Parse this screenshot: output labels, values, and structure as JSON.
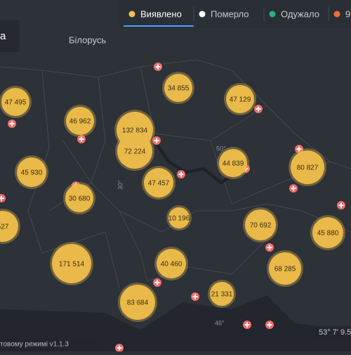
{
  "tabs": [
    {
      "label": "Виявлено",
      "color": "#f2c14e"
    },
    {
      "label": "Померло",
      "color": "#ffffff"
    },
    {
      "label": "Одужало",
      "color": "#2eaf7d"
    },
    {
      "label": "9",
      "color": "#f36b3b"
    }
  ],
  "panel_label": "а",
  "country_label": "Білорусь",
  "meridian_labels": [
    "30°",
    "50°",
    "46°"
  ],
  "bubbles": [
    {
      "label": "47 495"
    },
    {
      "label": "46 962"
    },
    {
      "label": "132 834"
    },
    {
      "label": "72 224"
    },
    {
      "label": "34 855"
    },
    {
      "label": "47 129"
    },
    {
      "label": "44 839"
    },
    {
      "label": "80 827"
    },
    {
      "label": "45 930"
    },
    {
      "label": "527"
    },
    {
      "label": "30 680"
    },
    {
      "label": "47 457"
    },
    {
      "label": "10 196"
    },
    {
      "label": "70 692"
    },
    {
      "label": "45 880"
    },
    {
      "label": "171 514"
    },
    {
      "label": "40 460"
    },
    {
      "label": "68 285"
    },
    {
      "label": "21 331"
    },
    {
      "label": "83 684"
    }
  ],
  "footer_version": "товому режимі v1.1.3",
  "coordinates": "53° 7' 9.5"
}
